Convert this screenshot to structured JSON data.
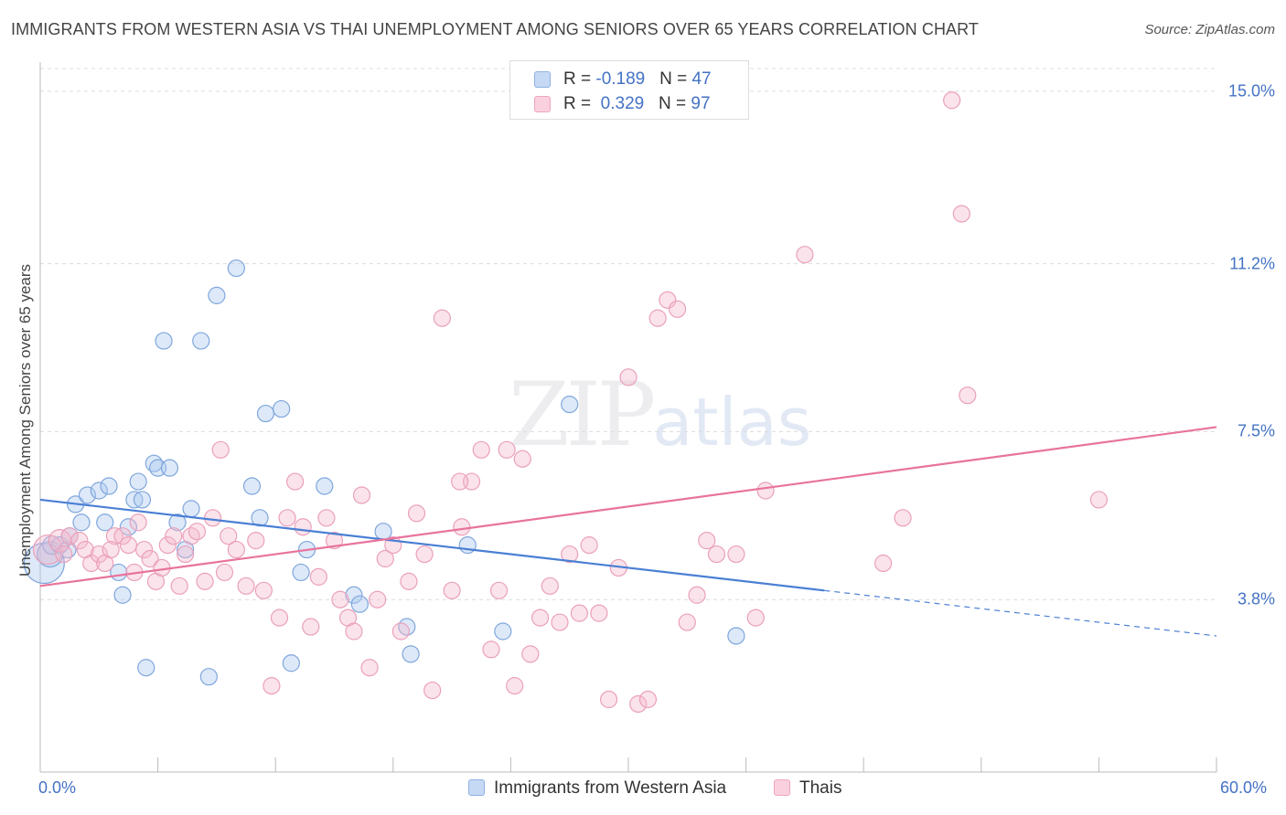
{
  "header": {
    "title": "IMMIGRANTS FROM WESTERN ASIA VS THAI UNEMPLOYMENT AMONG SENIORS OVER 65 YEARS CORRELATION CHART",
    "source": "Source: ZipAtlas.com"
  },
  "watermark": {
    "zip": "ZIP",
    "atlas": "atlas"
  },
  "legend": {
    "series1": {
      "r_label": "R = ",
      "r_value": "-0.189",
      "n_label": "N = ",
      "n_value": "47",
      "color": "#aac8f0"
    },
    "series2": {
      "r_label": "R = ",
      "r_value": " 0.329",
      "n_label": "N = ",
      "n_value": "97",
      "color": "#f6b8cc"
    }
  },
  "bottom_legend": {
    "series1_label": "Immigrants from Western Asia",
    "series2_label": "Thais"
  },
  "chart_data": {
    "type": "scatter",
    "title": "IMMIGRANTS FROM WESTERN ASIA VS THAI UNEMPLOYMENT AMONG SENIORS OVER 65 YEARS CORRELATION CHART",
    "xlabel": "",
    "ylabel": "Unemployment Among Seniors over 65 years",
    "xlim": [
      0,
      60
    ],
    "ylim": [
      0,
      15.5
    ],
    "x_tick_labels": [
      "0.0%",
      "60.0%"
    ],
    "y_ticks": [
      3.8,
      7.5,
      11.2,
      15.0
    ],
    "y_tick_labels": [
      "3.8%",
      "7.5%",
      "11.2%",
      "15.0%"
    ],
    "grid": true,
    "colors": {
      "series1": "#4a7fd4",
      "series2": "#e8739c"
    },
    "series": [
      {
        "name": "Immigrants from Western Asia",
        "trend": {
          "x0": 0,
          "y0": 6.0,
          "x1": 40,
          "y1": 4.0,
          "dash_to_x": 60,
          "dash_to_y": 3.0
        },
        "points": [
          [
            0.2,
            4.6,
            22
          ],
          [
            0.5,
            4.8,
            14
          ],
          [
            0.6,
            5.0,
            10
          ],
          [
            1.0,
            5.0,
            9
          ],
          [
            1.4,
            4.9,
            9
          ],
          [
            1.5,
            5.2,
            9
          ],
          [
            1.8,
            5.9,
            9
          ],
          [
            2.1,
            5.5,
            9
          ],
          [
            2.4,
            6.1,
            9
          ],
          [
            3.0,
            6.2,
            9
          ],
          [
            3.3,
            5.5,
            9
          ],
          [
            3.5,
            6.3,
            9
          ],
          [
            4.0,
            4.4,
            9
          ],
          [
            4.2,
            3.9,
            9
          ],
          [
            4.5,
            5.4,
            9
          ],
          [
            4.8,
            6.0,
            9
          ],
          [
            5.0,
            6.4,
            9
          ],
          [
            5.2,
            6.0,
            9
          ],
          [
            5.4,
            2.3,
            9
          ],
          [
            5.8,
            6.8,
            9
          ],
          [
            6.0,
            6.7,
            9
          ],
          [
            6.3,
            9.5,
            9
          ],
          [
            6.6,
            6.7,
            9
          ],
          [
            7.0,
            5.5,
            9
          ],
          [
            7.4,
            4.9,
            9
          ],
          [
            7.7,
            5.8,
            9
          ],
          [
            8.2,
            9.5,
            9
          ],
          [
            8.6,
            2.1,
            9
          ],
          [
            9.0,
            10.5,
            9
          ],
          [
            10.0,
            11.1,
            9
          ],
          [
            10.8,
            6.3,
            9
          ],
          [
            11.2,
            5.6,
            9
          ],
          [
            11.5,
            7.9,
            9
          ],
          [
            12.3,
            8.0,
            9
          ],
          [
            12.8,
            2.4,
            9
          ],
          [
            13.3,
            4.4,
            9
          ],
          [
            13.6,
            4.9,
            9
          ],
          [
            14.5,
            6.3,
            9
          ],
          [
            16.0,
            3.9,
            9
          ],
          [
            16.3,
            3.7,
            9
          ],
          [
            17.5,
            5.3,
            9
          ],
          [
            18.7,
            3.2,
            9
          ],
          [
            18.9,
            2.6,
            9
          ],
          [
            21.8,
            5.0,
            9
          ],
          [
            23.6,
            3.1,
            9
          ],
          [
            27.0,
            8.1,
            9
          ],
          [
            35.5,
            3.0,
            9
          ]
        ]
      },
      {
        "name": "Thais",
        "trend": {
          "x0": 0,
          "y0": 4.1,
          "x1": 60,
          "y1": 7.6
        },
        "points": [
          [
            0.4,
            4.9,
            16
          ],
          [
            1.0,
            5.1,
            12
          ],
          [
            1.2,
            4.8,
            9
          ],
          [
            1.5,
            5.2,
            9
          ],
          [
            2.0,
            5.1,
            9
          ],
          [
            2.3,
            4.9,
            9
          ],
          [
            2.6,
            4.6,
            9
          ],
          [
            3.0,
            4.8,
            9
          ],
          [
            3.3,
            4.6,
            9
          ],
          [
            3.8,
            5.2,
            9
          ],
          [
            4.2,
            5.2,
            9
          ],
          [
            4.5,
            5.0,
            9
          ],
          [
            4.8,
            4.4,
            9
          ],
          [
            5.0,
            5.5,
            9
          ],
          [
            5.3,
            4.9,
            9
          ],
          [
            5.6,
            4.7,
            9
          ],
          [
            5.9,
            4.2,
            9
          ],
          [
            6.2,
            4.5,
            9
          ],
          [
            6.5,
            5.0,
            9
          ],
          [
            6.8,
            5.2,
            9
          ],
          [
            7.1,
            4.1,
            9
          ],
          [
            7.4,
            4.8,
            9
          ],
          [
            7.7,
            5.2,
            9
          ],
          [
            8.0,
            5.3,
            9
          ],
          [
            8.4,
            4.2,
            9
          ],
          [
            8.8,
            5.6,
            9
          ],
          [
            9.2,
            7.1,
            9
          ],
          [
            9.6,
            5.2,
            9
          ],
          [
            10.0,
            4.9,
            9
          ],
          [
            10.5,
            4.1,
            9
          ],
          [
            11.0,
            5.1,
            9
          ],
          [
            11.4,
            4.0,
            9
          ],
          [
            11.8,
            1.9,
            9
          ],
          [
            12.2,
            3.4,
            9
          ],
          [
            12.6,
            5.6,
            9
          ],
          [
            13.0,
            6.4,
            9
          ],
          [
            13.4,
            5.4,
            9
          ],
          [
            13.8,
            3.2,
            9
          ],
          [
            14.2,
            4.3,
            9
          ],
          [
            14.6,
            5.6,
            9
          ],
          [
            15.0,
            5.1,
            9
          ],
          [
            15.3,
            3.8,
            9
          ],
          [
            15.7,
            3.4,
            9
          ],
          [
            16.0,
            3.1,
            9
          ],
          [
            16.4,
            6.1,
            9
          ],
          [
            16.8,
            2.3,
            9
          ],
          [
            17.2,
            3.8,
            9
          ],
          [
            17.6,
            4.7,
            9
          ],
          [
            18.0,
            5.0,
            9
          ],
          [
            18.4,
            3.1,
            9
          ],
          [
            18.8,
            4.2,
            9
          ],
          [
            19.2,
            5.7,
            9
          ],
          [
            19.6,
            4.8,
            9
          ],
          [
            20.0,
            1.8,
            9
          ],
          [
            20.5,
            10.0,
            9
          ],
          [
            21.0,
            4.0,
            9
          ],
          [
            21.5,
            5.4,
            9
          ],
          [
            22.0,
            6.4,
            9
          ],
          [
            22.5,
            7.1,
            9
          ],
          [
            23.0,
            2.7,
            9
          ],
          [
            23.4,
            4.0,
            9
          ],
          [
            23.8,
            7.1,
            9
          ],
          [
            24.2,
            1.9,
            9
          ],
          [
            24.6,
            6.9,
            9
          ],
          [
            25.0,
            2.6,
            9
          ],
          [
            25.5,
            3.4,
            9
          ],
          [
            26.0,
            4.1,
            9
          ],
          [
            26.5,
            3.3,
            9
          ],
          [
            27.0,
            4.8,
            9
          ],
          [
            27.5,
            3.5,
            9
          ],
          [
            28.0,
            5.0,
            9
          ],
          [
            28.5,
            3.5,
            9
          ],
          [
            29.0,
            1.6,
            9
          ],
          [
            29.5,
            4.5,
            9
          ],
          [
            30.0,
            8.7,
            9
          ],
          [
            30.5,
            1.5,
            9
          ],
          [
            31.0,
            1.6,
            9
          ],
          [
            31.5,
            10.0,
            9
          ],
          [
            32.0,
            10.4,
            9
          ],
          [
            32.5,
            10.2,
            9
          ],
          [
            33.0,
            3.3,
            9
          ],
          [
            33.5,
            3.9,
            9
          ],
          [
            34.0,
            5.1,
            9
          ],
          [
            34.5,
            4.8,
            9
          ],
          [
            35.5,
            4.8,
            9
          ],
          [
            36.5,
            3.4,
            9
          ],
          [
            37.0,
            6.2,
            9
          ],
          [
            39.0,
            11.4,
            9
          ],
          [
            43.0,
            4.6,
            9
          ],
          [
            44.0,
            5.6,
            9
          ],
          [
            46.5,
            14.8,
            9
          ],
          [
            47.0,
            12.3,
            9
          ],
          [
            47.3,
            8.3,
            9
          ],
          [
            54.0,
            6.0,
            9
          ],
          [
            3.6,
            4.9,
            9
          ],
          [
            9.4,
            4.4,
            9
          ],
          [
            21.4,
            6.4,
            9
          ]
        ]
      }
    ]
  }
}
